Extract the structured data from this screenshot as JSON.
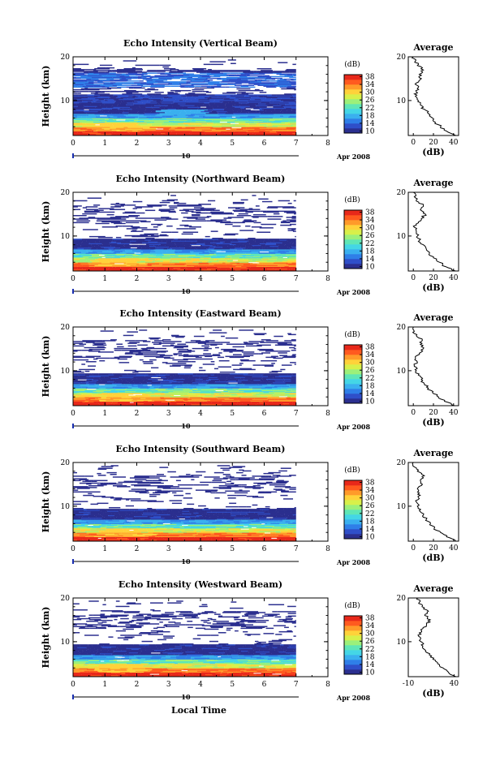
{
  "figure": {
    "xlabel": "Local Time",
    "date_label": "Apr 2008",
    "day_label": "10"
  },
  "colorbar": {
    "unit": "(dB)",
    "ticks": [
      "38",
      "34",
      "30",
      "26",
      "22",
      "18",
      "14",
      "10"
    ],
    "colors": [
      "#2b2f8f",
      "#2f4fc9",
      "#2f7fe8",
      "#3ab0ef",
      "#44d6e6",
      "#5fe6b6",
      "#9cf07a",
      "#d8f04a",
      "#ffd23a",
      "#ff9a2a",
      "#ff5a1f",
      "#e8281a"
    ]
  },
  "chart_data": [
    {
      "type": "heatmap",
      "title": "Echo Intensity (Vertical Beam)",
      "ylabel": "Height (km)",
      "x_ticks": [
        "0",
        "1",
        "2",
        "3",
        "4",
        "5",
        "6",
        "7",
        "8"
      ],
      "y_ticks": [
        "20",
        "10"
      ],
      "xlim": [
        0,
        8
      ],
      "ylim": [
        2,
        20
      ],
      "data_xmax": 7,
      "colorbar_range": [
        10,
        38
      ],
      "profile": {
        "title": "Average",
        "xlabel": "(dB)",
        "x_ticks": [
          "0",
          "20",
          "40"
        ],
        "xlim": [
          -5,
          45
        ],
        "heights": [
          2,
          3,
          4,
          5,
          6,
          7,
          8,
          9,
          10,
          11,
          12,
          13,
          14,
          15,
          16,
          17,
          18,
          19,
          20
        ],
        "values": [
          42,
          33,
          27,
          22,
          19,
          15,
          11,
          7,
          5,
          2,
          3,
          5,
          3,
          8,
          6,
          10,
          4,
          2,
          0
        ]
      }
    },
    {
      "type": "heatmap",
      "title": "Echo Intensity (Northward Beam)",
      "ylabel": "Height (km)",
      "x_ticks": [
        "0",
        "1",
        "2",
        "3",
        "4",
        "5",
        "6",
        "7",
        "8"
      ],
      "y_ticks": [
        "20",
        "10"
      ],
      "xlim": [
        0,
        8
      ],
      "ylim": [
        2,
        20
      ],
      "data_xmax": 7,
      "colorbar_range": [
        10,
        38
      ],
      "profile": {
        "title": "Average",
        "xlabel": "(dB)",
        "x_ticks": [
          "0",
          "20",
          "40"
        ],
        "xlim": [
          -5,
          45
        ],
        "heights": [
          2,
          3,
          4,
          5,
          6,
          7,
          8,
          9,
          10,
          11,
          12,
          13,
          14,
          15,
          16,
          17,
          18,
          19,
          20
        ],
        "values": [
          42,
          32,
          26,
          20,
          16,
          13,
          10,
          6,
          4,
          3,
          1,
          5,
          8,
          12,
          7,
          10,
          3,
          1,
          0
        ]
      }
    },
    {
      "type": "heatmap",
      "title": "Echo Intensity (Eastward Beam)",
      "ylabel": "Height (km)",
      "x_ticks": [
        "0",
        "1",
        "2",
        "3",
        "4",
        "5",
        "6",
        "7",
        "8"
      ],
      "y_ticks": [
        "20",
        "10"
      ],
      "xlim": [
        0,
        8
      ],
      "ylim": [
        2,
        20
      ],
      "data_xmax": 7,
      "colorbar_range": [
        10,
        38
      ],
      "profile": {
        "title": "Average",
        "xlabel": "(dB)",
        "x_ticks": [
          "0",
          "20",
          "40"
        ],
        "xlim": [
          -5,
          45
        ],
        "heights": [
          2,
          3,
          4,
          5,
          6,
          7,
          8,
          9,
          10,
          11,
          12,
          13,
          14,
          15,
          16,
          17,
          18,
          19,
          20
        ],
        "values": [
          41,
          31,
          25,
          19,
          15,
          11,
          8,
          5,
          3,
          1,
          4,
          2,
          6,
          10,
          7,
          9,
          3,
          1,
          0
        ]
      }
    },
    {
      "type": "heatmap",
      "title": "Echo Intensity (Southward Beam)",
      "ylabel": "Height (km)",
      "x_ticks": [
        "0",
        "1",
        "2",
        "3",
        "4",
        "5",
        "6",
        "7",
        "8"
      ],
      "y_ticks": [
        "20",
        "10"
      ],
      "xlim": [
        0,
        8
      ],
      "ylim": [
        2,
        20
      ],
      "data_xmax": 7,
      "colorbar_range": [
        10,
        38
      ],
      "profile": {
        "title": "Average",
        "xlabel": "(dB)",
        "x_ticks": [
          "0",
          "20",
          "40"
        ],
        "xlim": [
          -5,
          45
        ],
        "heights": [
          2,
          3,
          4,
          5,
          6,
          7,
          8,
          9,
          10,
          11,
          12,
          13,
          14,
          15,
          16,
          17,
          18,
          19,
          20
        ],
        "values": [
          42,
          33,
          27,
          21,
          17,
          13,
          10,
          6,
          4,
          3,
          5,
          6,
          4,
          9,
          7,
          11,
          4,
          1,
          0
        ]
      }
    },
    {
      "type": "heatmap",
      "title": "Echo Intensity (Westward Beam)",
      "ylabel": "Height (km)",
      "x_ticks": [
        "0",
        "1",
        "2",
        "3",
        "4",
        "5",
        "6",
        "7",
        "8"
      ],
      "y_ticks": [
        "20",
        "10"
      ],
      "xlim": [
        0,
        8
      ],
      "ylim": [
        2,
        20
      ],
      "data_xmax": 7,
      "colorbar_range": [
        10,
        38
      ],
      "profile": {
        "title": "Average",
        "xlabel": "(dB)",
        "x_ticks": [
          "-10",
          "40"
        ],
        "xlim": [
          -10,
          45
        ],
        "heights": [
          2,
          3,
          4,
          5,
          6,
          7,
          8,
          9,
          10,
          11,
          12,
          13,
          14,
          15,
          16,
          17,
          18,
          19,
          20
        ],
        "values": [
          42,
          34,
          28,
          22,
          17,
          13,
          9,
          6,
          4,
          3,
          2,
          6,
          10,
          14,
          8,
          12,
          5,
          2,
          0
        ]
      }
    }
  ]
}
